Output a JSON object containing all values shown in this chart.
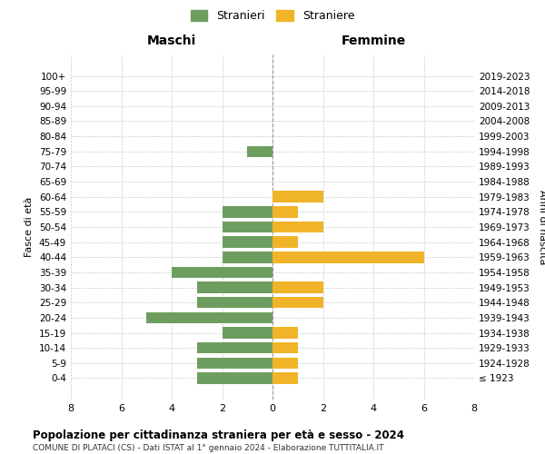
{
  "age_groups": [
    "100+",
    "95-99",
    "90-94",
    "85-89",
    "80-84",
    "75-79",
    "70-74",
    "65-69",
    "60-64",
    "55-59",
    "50-54",
    "45-49",
    "40-44",
    "35-39",
    "30-34",
    "25-29",
    "20-24",
    "15-19",
    "10-14",
    "5-9",
    "0-4"
  ],
  "birth_years": [
    "≤ 1923",
    "1924-1928",
    "1929-1933",
    "1934-1938",
    "1939-1943",
    "1944-1948",
    "1949-1953",
    "1954-1958",
    "1959-1963",
    "1964-1968",
    "1969-1973",
    "1974-1978",
    "1979-1983",
    "1984-1988",
    "1989-1993",
    "1994-1998",
    "1999-2003",
    "2004-2008",
    "2009-2013",
    "2014-2018",
    "2019-2023"
  ],
  "maschi": [
    0,
    0,
    0,
    0,
    0,
    1,
    0,
    0,
    0,
    2,
    2,
    2,
    2,
    4,
    3,
    3,
    5,
    2,
    3,
    3,
    3
  ],
  "femmine": [
    0,
    0,
    0,
    0,
    0,
    0,
    0,
    0,
    2,
    1,
    2,
    1,
    6,
    0,
    2,
    2,
    0,
    1,
    1,
    1,
    1
  ],
  "maschi_color": "#6e9e5f",
  "femmine_color": "#f0b429",
  "title": "Popolazione per cittadinanza straniera per età e sesso - 2024",
  "subtitle": "COMUNE DI PLATACI (CS) - Dati ISTAT al 1° gennaio 2024 - Elaborazione TUTTITALIA.IT",
  "legend_maschi": "Stranieri",
  "legend_femmine": "Straniere",
  "header_left": "Maschi",
  "header_right": "Femmine",
  "ylabel_left": "Fasce di età",
  "ylabel_right": "Anni di nascita",
  "xlim": 8,
  "background_color": "#ffffff",
  "grid_color": "#cccccc"
}
